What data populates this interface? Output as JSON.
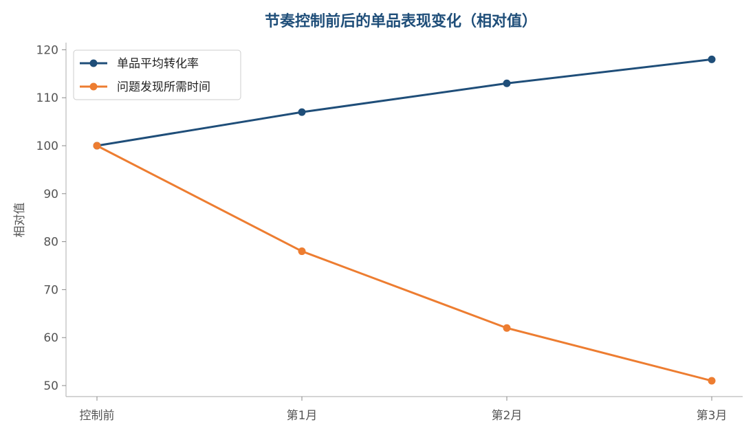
{
  "chart_data": {
    "type": "line",
    "title": "节奏控制前后的单品表现变化（相对值）",
    "xlabel": "",
    "ylabel": "相对值",
    "categories": [
      "控制前",
      "第1月",
      "第2月",
      "第3月"
    ],
    "ylim": [
      48,
      122
    ],
    "yticks": [
      50,
      60,
      70,
      80,
      90,
      100,
      110,
      120
    ],
    "grid": false,
    "legend_position": "top-left",
    "series": [
      {
        "name": "单品平均转化率",
        "color": "#1f4e79",
        "values": [
          100,
          107,
          113,
          118
        ]
      },
      {
        "name": "问题发现所需时间",
        "color": "#ed7d31",
        "values": [
          100,
          78,
          62,
          51
        ]
      }
    ],
    "title_color": "#1f4e79"
  }
}
